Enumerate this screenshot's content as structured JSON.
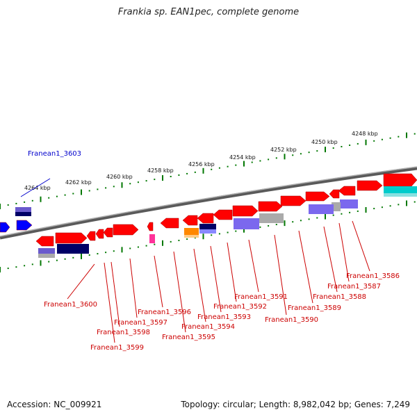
{
  "title": "Frankia sp. EAN1pec, complete genome",
  "footer": {
    "accession": "Accession: NC_009921",
    "stats": "Topology: circular; Length: 8,982,042 bp; Genes: 7,249"
  },
  "colors": {
    "forward_gene": "#ff0000",
    "highlight_gene": "#0000ff",
    "genome_line": "#808080",
    "tick": "#007700",
    "label_red": "#cc0000",
    "label_blue": "#0000cc",
    "purple_domain": "#6a5acd",
    "navy_domain": "#000066",
    "orange_domain": "#ff8800",
    "cyan_domain": "#00cccc",
    "grey_domain": "#aaaaaa",
    "pink_domain": "#ff3399"
  },
  "kbp_ticks": [
    "4248 kbp",
    "4250 kbp",
    "4252 kbp",
    "4254 kbp",
    "4256 kbp",
    "4258 kbp",
    "4260 kbp",
    "4262 kbp",
    "4264 kbp"
  ],
  "genes": [
    "Franean1_3603",
    "Franean1_3600",
    "Franean1_3599",
    "Franean1_3598",
    "Franean1_3597",
    "Franean1_3596",
    "Franean1_3595",
    "Franean1_3594",
    "Franean1_3593",
    "Franean1_3592",
    "Franean1_3591",
    "Franean1_3590",
    "Franean1_3589",
    "Franean1_3588",
    "Franean1_3587",
    "Franean1_3586"
  ]
}
